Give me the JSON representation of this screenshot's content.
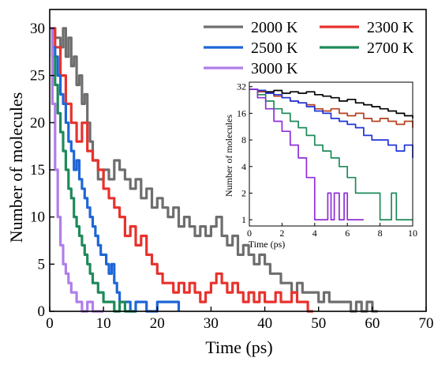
{
  "chart_data": [
    {
      "type": "line",
      "role": "main",
      "xlabel": "Time (ps)",
      "ylabel": "Number of molecules",
      "xlim": [
        0,
        70
      ],
      "ylim": [
        0,
        32
      ],
      "xticks": [
        "0",
        "10",
        "20",
        "30",
        "40",
        "50",
        "60",
        "70"
      ],
      "yticks": [
        "0",
        "5",
        "10",
        "15",
        "20",
        "25",
        "30"
      ],
      "legend_position": "top-right",
      "grid": false,
      "series": [
        {
          "name": "2000 K",
          "color": "#6e6e6e",
          "x": [
            0,
            1,
            2,
            2.5,
            3,
            3.5,
            4,
            4.5,
            5,
            5.5,
            6,
            6.5,
            7,
            7.5,
            8,
            9,
            10,
            11,
            12,
            13,
            14,
            15,
            16,
            17,
            18,
            19,
            20,
            21,
            22,
            23,
            24,
            25,
            26,
            27,
            28,
            29,
            30,
            31,
            32,
            33,
            34,
            35,
            36,
            37,
            38,
            39,
            40,
            41,
            42,
            43,
            44,
            45,
            46,
            47,
            48,
            49,
            50,
            51,
            52,
            53,
            54,
            55,
            56,
            57,
            58,
            59,
            60,
            61
          ],
          "y": [
            30,
            29,
            28,
            30,
            27,
            29,
            26,
            27,
            24,
            25,
            22,
            23,
            20,
            18,
            16,
            14,
            15,
            14,
            16,
            15,
            14,
            13,
            14,
            12,
            13,
            11,
            12,
            11,
            10,
            11,
            9,
            10,
            9,
            8,
            9,
            8,
            9,
            10,
            8,
            7,
            8,
            6,
            7,
            6,
            5,
            6,
            5,
            4,
            4,
            3,
            3,
            2,
            3,
            2,
            2,
            2,
            1,
            2,
            1,
            1,
            1,
            1,
            0,
            1,
            0,
            1,
            0,
            0
          ]
        },
        {
          "name": "2300 K",
          "color": "#e8322d",
          "x": [
            0,
            1,
            2,
            3,
            4,
            5,
            6,
            7,
            8,
            9,
            10,
            11,
            12,
            13,
            14,
            15,
            16,
            17,
            18,
            19,
            20,
            21,
            22,
            23,
            24,
            25,
            26,
            27,
            28,
            29,
            30,
            31,
            32,
            33,
            34,
            35,
            36,
            37,
            38,
            39,
            40,
            41,
            42,
            43,
            44,
            45,
            46,
            47,
            48,
            49
          ],
          "y": [
            30,
            28,
            25,
            22,
            20,
            18,
            20,
            17,
            16,
            15,
            13,
            12,
            11,
            10,
            8,
            9,
            7,
            8,
            6,
            5,
            4,
            3,
            3,
            2,
            3,
            2,
            3,
            2,
            1,
            2,
            3,
            4,
            3,
            2,
            3,
            2,
            1,
            2,
            1,
            2,
            1,
            1,
            2,
            1,
            1,
            2,
            1,
            1,
            0,
            0
          ]
        },
        {
          "name": "2500 K",
          "color": "#1f66d6",
          "x": [
            0,
            0.5,
            1,
            1.5,
            2,
            2.5,
            3,
            3.5,
            4,
            4.5,
            5,
            5.5,
            6,
            6.5,
            7,
            7.5,
            8,
            8.5,
            9,
            9.5,
            10,
            10.5,
            11,
            11.5,
            12,
            12.5,
            13,
            14,
            15,
            16,
            18,
            20,
            22,
            24
          ],
          "y": [
            30,
            28,
            27,
            25,
            23,
            22,
            20,
            18,
            17,
            15,
            16,
            14,
            13,
            12,
            11,
            10,
            9,
            8,
            7,
            6,
            6,
            5,
            4,
            5,
            3,
            2,
            1,
            1,
            0,
            1,
            0,
            1,
            1,
            0
          ]
        },
        {
          "name": "2700 K",
          "color": "#1f8a5a",
          "x": [
            0,
            0.5,
            1,
            1.5,
            2,
            2.5,
            3,
            3.5,
            4,
            4.5,
            5,
            5.5,
            6,
            6.5,
            7,
            7.5,
            8,
            8.5,
            9,
            9.5,
            10,
            11,
            12,
            13,
            14,
            15,
            16
          ],
          "y": [
            30,
            27,
            24,
            21,
            19,
            17,
            15,
            13,
            12,
            10,
            9,
            8,
            7,
            6,
            5,
            4,
            3,
            3,
            2,
            2,
            1,
            1,
            0,
            1,
            0,
            0,
            0
          ]
        },
        {
          "name": "3000 K",
          "color": "#b07ee8",
          "x": [
            0,
            0.5,
            1,
            1.5,
            2,
            2.5,
            3,
            3.5,
            4,
            4.5,
            5,
            5.5,
            6,
            7,
            8,
            9,
            10
          ],
          "y": [
            30,
            22,
            15,
            10,
            7,
            5,
            4,
            3,
            2,
            2,
            1,
            1,
            0,
            1,
            0,
            0,
            0
          ]
        }
      ]
    },
    {
      "type": "line",
      "role": "inset",
      "xlabel": "Time (ps)",
      "ylabel": "Number of molecules",
      "xlim": [
        0,
        10
      ],
      "ylim": [
        0.85,
        36
      ],
      "yscale": "log2",
      "xticks": [
        "0",
        "2",
        "4",
        "6",
        "8",
        "10"
      ],
      "yticks": [
        "1",
        "2",
        "4",
        "8",
        "16",
        "32"
      ],
      "series": [
        {
          "color": "#000000",
          "x": [
            0,
            0.5,
            1,
            1.5,
            2,
            2.5,
            3,
            3.5,
            4,
            4.5,
            5,
            5.5,
            6,
            6.5,
            7,
            7.5,
            8,
            8.5,
            9,
            9.5,
            10
          ],
          "y": [
            30,
            29,
            28,
            29,
            27,
            28,
            27,
            28,
            26,
            25,
            24,
            22,
            23,
            21,
            20,
            19,
            18,
            17,
            16,
            15,
            14
          ]
        },
        {
          "color": "#b5411f",
          "x": [
            0,
            0.5,
            1,
            1.5,
            2,
            2.5,
            3,
            3.5,
            4,
            4.5,
            5,
            5.5,
            6,
            6.5,
            7,
            7.5,
            8,
            8.5,
            9,
            9.5,
            10
          ],
          "y": [
            30,
            28,
            27,
            25,
            24,
            22,
            21,
            20,
            18,
            17,
            18,
            16,
            15,
            16,
            14,
            13,
            14,
            13,
            12,
            13,
            11
          ]
        },
        {
          "color": "#1f34d6",
          "x": [
            0,
            0.5,
            1,
            1.5,
            2,
            2.5,
            3,
            3.5,
            4,
            4.5,
            5,
            5.5,
            6,
            6.5,
            7,
            7.5,
            8,
            8.5,
            9,
            9.5,
            10
          ],
          "y": [
            30,
            29,
            27,
            26,
            24,
            22,
            21,
            19,
            17,
            16,
            14,
            13,
            12,
            11,
            9,
            8,
            8,
            7,
            6,
            7,
            5
          ]
        },
        {
          "color": "#1f8a5a",
          "x": [
            0,
            0.5,
            1,
            1.5,
            2,
            2.5,
            3,
            3.5,
            4,
            4.5,
            5,
            5.5,
            6,
            6.5,
            7,
            7.5,
            8,
            8.5,
            8.7,
            9,
            9.5,
            10
          ],
          "y": [
            30,
            26,
            22,
            18,
            16,
            13,
            11,
            9,
            7,
            6,
            5,
            4,
            3,
            2,
            2,
            2,
            1,
            1,
            2,
            1,
            1,
            1
          ]
        },
        {
          "color": "#8f2fd6",
          "x": [
            0,
            0.5,
            1,
            1.5,
            2,
            2.5,
            3,
            3.5,
            4,
            4.5,
            4.8,
            5,
            5.2,
            5.5,
            5.8,
            6,
            6.5,
            7
          ],
          "y": [
            30,
            24,
            18,
            13,
            10,
            7,
            5,
            3,
            1,
            1,
            2,
            1,
            2,
            1,
            2,
            1,
            1,
            1
          ]
        }
      ]
    }
  ]
}
